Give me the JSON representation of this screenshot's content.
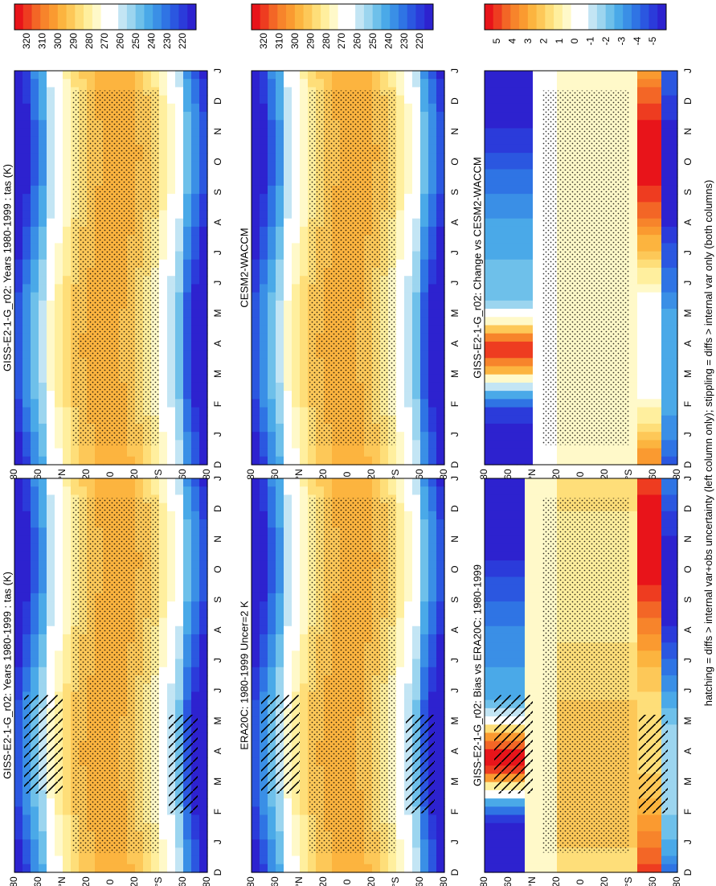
{
  "figure": {
    "footnote": "hatching = diffs > internal var+obs uncertainty (left column only); stippling = diffs > internal var only (both columns)"
  },
  "colorbars": {
    "absolute": {
      "labels": [
        "320",
        "310",
        "300",
        "290",
        "280",
        "270",
        "260",
        "250",
        "240",
        "230",
        "220"
      ],
      "colors": [
        "#e8141a",
        "#ee3c20",
        "#f36626",
        "#f7842b",
        "#fa9a30",
        "#fcb43f",
        "#fdc858",
        "#fede79",
        "#ffef9e",
        "#fff9c9",
        "#ffffff",
        "#ffffff",
        "#c3e5f4",
        "#9cd5ef",
        "#6ec0ea",
        "#4aa9e8",
        "#3a8fe6",
        "#2f74e4",
        "#2b57e0",
        "#2b3bda",
        "#2d22cf"
      ]
    },
    "diff": {
      "labels": [
        "5",
        "4",
        "3",
        "2",
        "1",
        "0",
        "-1",
        "-2",
        "-3",
        "-4",
        "-5"
      ],
      "colors": [
        "#e8141a",
        "#ee3c20",
        "#f36626",
        "#f7842b",
        "#fa9a30",
        "#fcb43f",
        "#fdc858",
        "#fede79",
        "#ffef9e",
        "#fff9c9",
        "#ffffff",
        "#ffffff",
        "#c3e5f4",
        "#9cd5ef",
        "#6ec0ea",
        "#4aa9e8",
        "#3a8fe6",
        "#2f74e4",
        "#2b57e0",
        "#2b3bda",
        "#2d22cf"
      ]
    }
  },
  "chart_data": [
    {
      "type": "heatmap",
      "title": "GISS-E2-1-G_r02: Years 1980-1999 : tas (K)",
      "x": [
        "D",
        "J",
        "F",
        "M",
        "A",
        "M",
        "J",
        "J",
        "A",
        "S",
        "O",
        "N",
        "D",
        "J"
      ],
      "ylabels": [
        "80",
        "60",
        "°N",
        "20",
        "0",
        "20",
        "°S",
        "60",
        "80"
      ],
      "colorbar": "absolute",
      "hatching": true,
      "stippling": true
    },
    {
      "type": "heatmap",
      "title": "GISS-E2-1-G_r02: Years 1980-1999 : tas (K)",
      "x": [
        "D",
        "J",
        "F",
        "M",
        "A",
        "M",
        "J",
        "J",
        "A",
        "S",
        "O",
        "N",
        "D",
        "J"
      ],
      "ylabels": [
        "80",
        "60",
        "°N",
        "20",
        "0",
        "20",
        "°S",
        "60",
        "80"
      ],
      "colorbar": "absolute",
      "stippling": true
    },
    {
      "type": "heatmap",
      "title": "ERA20C: 1980-1999 Uncer=2 K",
      "x": [
        "D",
        "J",
        "F",
        "M",
        "A",
        "M",
        "J",
        "J",
        "A",
        "S",
        "O",
        "N",
        "D",
        "J"
      ],
      "ylabels": [
        "80",
        "60",
        "°N",
        "20",
        "0",
        "20",
        "°S",
        "60",
        "80"
      ],
      "colorbar": "absolute",
      "hatching": true,
      "stippling": true
    },
    {
      "type": "heatmap",
      "title": "CESM2-WACCM",
      "x": [
        "D",
        "J",
        "F",
        "M",
        "A",
        "M",
        "J",
        "J",
        "A",
        "S",
        "O",
        "N",
        "D",
        "J"
      ],
      "ylabels": [
        "80",
        "60",
        "°N",
        "20",
        "0",
        "20",
        "°S",
        "60",
        "80"
      ],
      "colorbar": "absolute",
      "stippling": true
    },
    {
      "type": "heatmap",
      "title": "GISS-E2-1-G_r02: Bias vs ERA20C: 1980-1999",
      "x": [
        "D",
        "J",
        "F",
        "M",
        "A",
        "M",
        "J",
        "J",
        "A",
        "S",
        "O",
        "N",
        "D",
        "J"
      ],
      "ylabels": [
        "80",
        "60",
        "°N",
        "20",
        "0",
        "20",
        "°S",
        "60",
        "80"
      ],
      "colorbar": "diff",
      "hatching": true,
      "stippling": true
    },
    {
      "type": "heatmap",
      "title": "GISS-E2-1-G_r02: Change vs CESM2-WACCM",
      "x": [
        "D",
        "J",
        "F",
        "M",
        "A",
        "M",
        "J",
        "J",
        "A",
        "S",
        "O",
        "N",
        "D",
        "J"
      ],
      "ylabels": [
        "80",
        "60",
        "°N",
        "20",
        "0",
        "20",
        "°S",
        "60",
        "80"
      ],
      "colorbar": "diff",
      "stippling": true
    }
  ]
}
